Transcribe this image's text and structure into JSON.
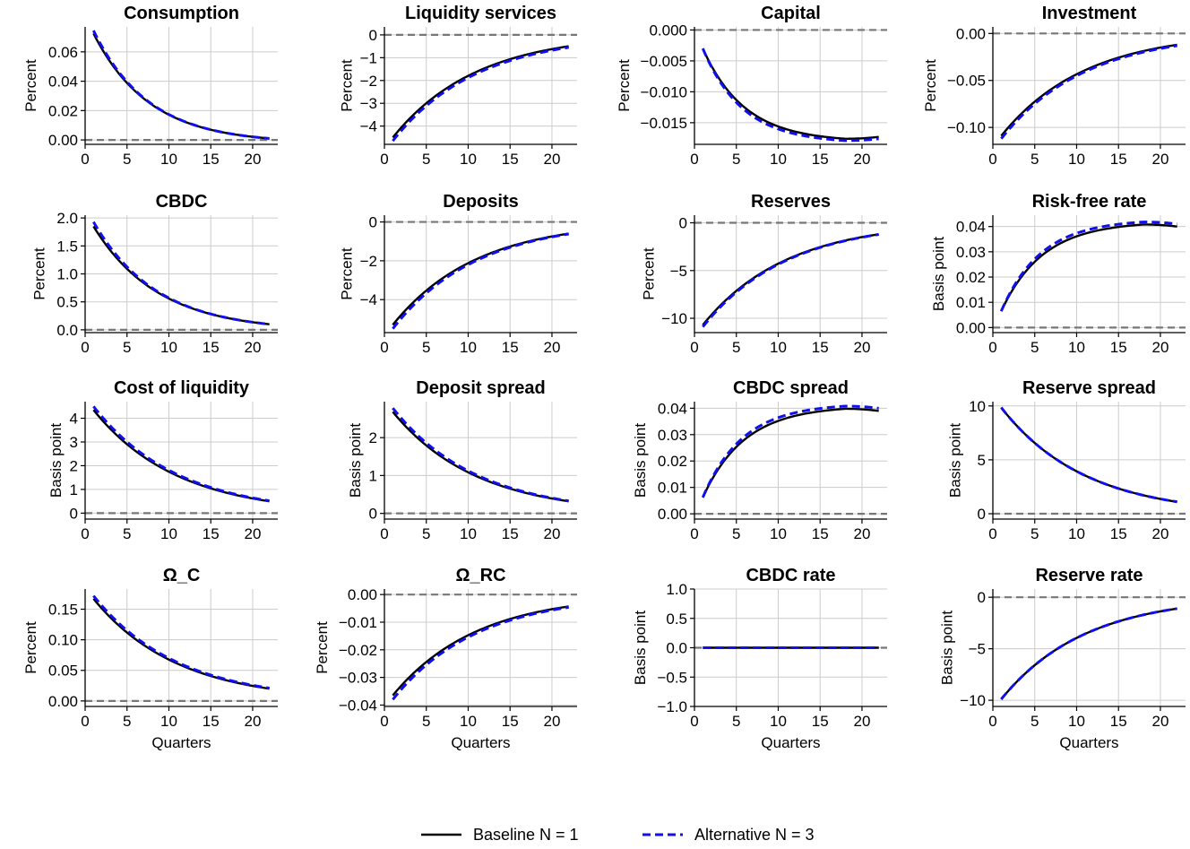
{
  "chart_data": [
    {
      "type": "line",
      "title": "Consumption",
      "ylabel": "Percent",
      "xlabel": "",
      "ylim": [
        -0.003,
        0.077
      ],
      "yticks": [
        0,
        0.02,
        0.04,
        0.06
      ],
      "ytick_labels": [
        "0.00",
        "0.02",
        "0.04",
        "0.06"
      ],
      "series": [
        {
          "name": "Baseline N = 1",
          "start": 0.0725,
          "end": 0.001,
          "shape": "exp",
          "k": 0.15
        },
        {
          "name": "Alternative N = 3",
          "start": 0.0745,
          "end": 0.001,
          "shape": "exp",
          "k": 0.152
        }
      ]
    },
    {
      "type": "line",
      "title": "Liquidity services",
      "ylabel": "Percent",
      "xlabel": "",
      "ylim": [
        -4.8,
        0.35
      ],
      "yticks": [
        -4,
        -3,
        -2,
        -1,
        0
      ],
      "ytick_labels": [
        "−4",
        "−3",
        "−2",
        "−1",
        "0"
      ],
      "series": [
        {
          "name": "Baseline N = 1",
          "start": -4.5,
          "end": -0.5,
          "shape": "exp",
          "k": 0.1
        },
        {
          "name": "Alternative N = 3",
          "start": -4.65,
          "end": -0.55,
          "shape": "exp",
          "k": 0.1
        }
      ]
    },
    {
      "type": "line",
      "title": "Capital",
      "ylabel": "Percent",
      "xlabel": "",
      "ylim": [
        -0.0185,
        0.0005
      ],
      "yticks": [
        -0.015,
        -0.01,
        -0.005,
        0
      ],
      "ytick_labels": [
        "−0.015",
        "−0.010",
        "−0.005",
        "0.000"
      ],
      "series": [
        {
          "name": "Baseline N = 1",
          "start": -0.003,
          "end": -0.0173,
          "shape": "hump",
          "k": 0.2,
          "peak": -0.0176,
          "tpeak": 18
        },
        {
          "name": "Alternative N = 3",
          "start": -0.003,
          "end": -0.0176,
          "shape": "hump",
          "k": 0.21,
          "peak": -0.0179,
          "tpeak": 18
        }
      ]
    },
    {
      "type": "line",
      "title": "Investment",
      "ylabel": "Percent",
      "xlabel": "",
      "ylim": [
        -0.118,
        0.007
      ],
      "yticks": [
        -0.1,
        -0.05,
        0
      ],
      "ytick_labels": [
        "−0.10",
        "−0.05",
        "0.00"
      ],
      "series": [
        {
          "name": "Baseline N = 1",
          "start": -0.109,
          "end": -0.012,
          "shape": "exp",
          "k": 0.1
        },
        {
          "name": "Alternative N = 3",
          "start": -0.112,
          "end": -0.013,
          "shape": "exp",
          "k": 0.1
        }
      ]
    },
    {
      "type": "line",
      "title": "CBDC",
      "ylabel": "Percent",
      "xlabel": "",
      "ylim": [
        -0.05,
        2.05
      ],
      "yticks": [
        0,
        0.5,
        1,
        1.5,
        2
      ],
      "ytick_labels": [
        "0.0",
        "0.5",
        "1.0",
        "1.5",
        "2.0"
      ],
      "series": [
        {
          "name": "Baseline N = 1",
          "start": 1.85,
          "end": 0.1,
          "shape": "exp",
          "k": 0.13
        },
        {
          "name": "Alternative N = 3",
          "start": 1.93,
          "end": 0.1,
          "shape": "exp",
          "k": 0.133
        }
      ]
    },
    {
      "type": "line",
      "title": "Deposits",
      "ylabel": "Percent",
      "xlabel": "",
      "ylim": [
        -5.7,
        0.35
      ],
      "yticks": [
        -4,
        -2,
        0
      ],
      "ytick_labels": [
        "−4",
        "−2",
        "0"
      ],
      "series": [
        {
          "name": "Baseline N = 1",
          "start": -5.3,
          "end": -0.6,
          "shape": "exp",
          "k": 0.1
        },
        {
          "name": "Alternative N = 3",
          "start": -5.5,
          "end": -0.62,
          "shape": "exp",
          "k": 0.1
        }
      ]
    },
    {
      "type": "line",
      "title": "Reserves",
      "ylabel": "Percent",
      "xlabel": "",
      "ylim": [
        -11.5,
        0.8
      ],
      "yticks": [
        -10,
        -5,
        0
      ],
      "ytick_labels": [
        "−10",
        "−5",
        "0"
      ],
      "series": [
        {
          "name": "Baseline N = 1",
          "start": -10.7,
          "end": -1.2,
          "shape": "exp",
          "k": 0.1
        },
        {
          "name": "Alternative N = 3",
          "start": -10.9,
          "end": -1.22,
          "shape": "exp",
          "k": 0.1
        }
      ]
    },
    {
      "type": "line",
      "title": "Risk-free rate",
      "ylabel": "Basis point",
      "xlabel": "",
      "ylim": [
        -0.002,
        0.0445
      ],
      "yticks": [
        0,
        0.01,
        0.02,
        0.03,
        0.04
      ],
      "ytick_labels": [
        "0.00",
        "0.01",
        "0.02",
        "0.03",
        "0.04"
      ],
      "series": [
        {
          "name": "Baseline N = 1",
          "start": 0.0065,
          "end": 0.04,
          "shape": "hump",
          "k": 0.2,
          "peak": 0.0408,
          "tpeak": 18
        },
        {
          "name": "Alternative N = 3",
          "start": 0.0065,
          "end": 0.041,
          "shape": "hump",
          "k": 0.21,
          "peak": 0.0418,
          "tpeak": 18
        }
      ]
    },
    {
      "type": "line",
      "title": "Cost of liquidity",
      "ylabel": "Basis point",
      "xlabel": "",
      "ylim": [
        -0.25,
        4.7
      ],
      "yticks": [
        0,
        1,
        2,
        3,
        4
      ],
      "ytick_labels": [
        "0",
        "1",
        "2",
        "3",
        "4"
      ],
      "series": [
        {
          "name": "Baseline N = 1",
          "start": 4.35,
          "end": 0.5,
          "shape": "exp",
          "k": 0.1
        },
        {
          "name": "Alternative N = 3",
          "start": 4.5,
          "end": 0.52,
          "shape": "exp",
          "k": 0.1
        }
      ]
    },
    {
      "type": "line",
      "title": "Deposit spread",
      "ylabel": "Basis point",
      "xlabel": "",
      "ylim": [
        -0.15,
        2.95
      ],
      "yticks": [
        0,
        1,
        2
      ],
      "ytick_labels": [
        "0",
        "1",
        "2"
      ],
      "series": [
        {
          "name": "Baseline N = 1",
          "start": 2.68,
          "end": 0.32,
          "shape": "exp",
          "k": 0.1
        },
        {
          "name": "Alternative N = 3",
          "start": 2.78,
          "end": 0.33,
          "shape": "exp",
          "k": 0.1
        }
      ]
    },
    {
      "type": "line",
      "title": "CBDC spread",
      "ylabel": "Basis point",
      "xlabel": "",
      "ylim": [
        -0.002,
        0.0425
      ],
      "yticks": [
        0,
        0.01,
        0.02,
        0.03,
        0.04
      ],
      "ytick_labels": [
        "0.00",
        "0.01",
        "0.02",
        "0.03",
        "0.04"
      ],
      "series": [
        {
          "name": "Baseline N = 1",
          "start": 0.0062,
          "end": 0.039,
          "shape": "hump",
          "k": 0.2,
          "peak": 0.0398,
          "tpeak": 18
        },
        {
          "name": "Alternative N = 3",
          "start": 0.0062,
          "end": 0.04,
          "shape": "hump",
          "k": 0.21,
          "peak": 0.0408,
          "tpeak": 18
        }
      ]
    },
    {
      "type": "line",
      "title": "Reserve spread",
      "ylabel": "Basis point",
      "xlabel": "",
      "ylim": [
        -0.5,
        10.4
      ],
      "yticks": [
        0,
        5,
        10
      ],
      "ytick_labels": [
        "0",
        "5",
        "10"
      ],
      "series": [
        {
          "name": "Baseline N = 1",
          "start": 9.85,
          "end": 1.1,
          "shape": "exp",
          "k": 0.1
        },
        {
          "name": "Alternative N = 3",
          "start": 9.85,
          "end": 1.1,
          "shape": "exp",
          "k": 0.1
        }
      ]
    },
    {
      "type": "line",
      "title": "Ω_C",
      "ylabel": "Percent",
      "xlabel": "Quarters",
      "ylim": [
        -0.009,
        0.183
      ],
      "yticks": [
        0,
        0.05,
        0.1,
        0.15
      ],
      "ytick_labels": [
        "0.00",
        "0.05",
        "0.10",
        "0.15"
      ],
      "series": [
        {
          "name": "Baseline N = 1",
          "start": 0.167,
          "end": 0.02,
          "shape": "exp",
          "k": 0.1
        },
        {
          "name": "Alternative N = 3",
          "start": 0.172,
          "end": 0.021,
          "shape": "exp",
          "k": 0.1
        }
      ]
    },
    {
      "type": "line",
      "title": "Ω_RC",
      "ylabel": "Percent",
      "xlabel": "Quarters",
      "ylim": [
        -0.0405,
        0.002
      ],
      "yticks": [
        -0.04,
        -0.03,
        -0.02,
        -0.01,
        0
      ],
      "ytick_labels": [
        "−0.04",
        "−0.03",
        "−0.02",
        "−0.01",
        "0.00"
      ],
      "series": [
        {
          "name": "Baseline N = 1",
          "start": -0.0365,
          "end": -0.0043,
          "shape": "exp",
          "k": 0.1
        },
        {
          "name": "Alternative N = 3",
          "start": -0.038,
          "end": -0.0046,
          "shape": "exp",
          "k": 0.1
        }
      ]
    },
    {
      "type": "line",
      "title": "CBDC rate",
      "ylabel": "Basis point",
      "xlabel": "Quarters",
      "ylim": [
        -1,
        1
      ],
      "yticks": [
        -1,
        -0.5,
        0,
        0.5,
        1
      ],
      "ytick_labels": [
        "−1.0",
        "−0.5",
        "0.0",
        "0.5",
        "1.0"
      ],
      "series": [
        {
          "name": "Baseline N = 1",
          "start": 0,
          "end": 0,
          "shape": "flat",
          "k": 0
        },
        {
          "name": "Alternative N = 3",
          "start": 0,
          "end": 0,
          "shape": "flat",
          "k": 0
        }
      ]
    },
    {
      "type": "line",
      "title": "Reserve rate",
      "ylabel": "Basis point",
      "xlabel": "Quarters",
      "ylim": [
        -10.6,
        0.8
      ],
      "yticks": [
        -10,
        -5,
        0
      ],
      "ytick_labels": [
        "−10",
        "−5",
        "0"
      ],
      "series": [
        {
          "name": "Baseline N = 1",
          "start": -9.9,
          "end": -1.1,
          "shape": "exp",
          "k": 0.1
        },
        {
          "name": "Alternative N = 3",
          "start": -9.9,
          "end": -1.1,
          "shape": "exp",
          "k": 0.1
        }
      ]
    }
  ],
  "xaxis": {
    "xlim": [
      0,
      23
    ],
    "ticks": [
      0,
      5,
      10,
      15,
      20
    ],
    "tick_labels": [
      "0",
      "5",
      "10",
      "15",
      "20"
    ],
    "x_start": 1,
    "x_end": 22
  },
  "legend": {
    "placement": "bottom-center",
    "items": [
      {
        "label": "Baseline N = 1",
        "color": "#000000",
        "style": "solid"
      },
      {
        "label": "Alternative N = 3",
        "color": "#1010ee",
        "style": "dashed"
      }
    ]
  },
  "colors": {
    "baseline": "#000000",
    "alternative": "#1010ee",
    "zero_line": "#777777",
    "grid": "#cccccc"
  }
}
